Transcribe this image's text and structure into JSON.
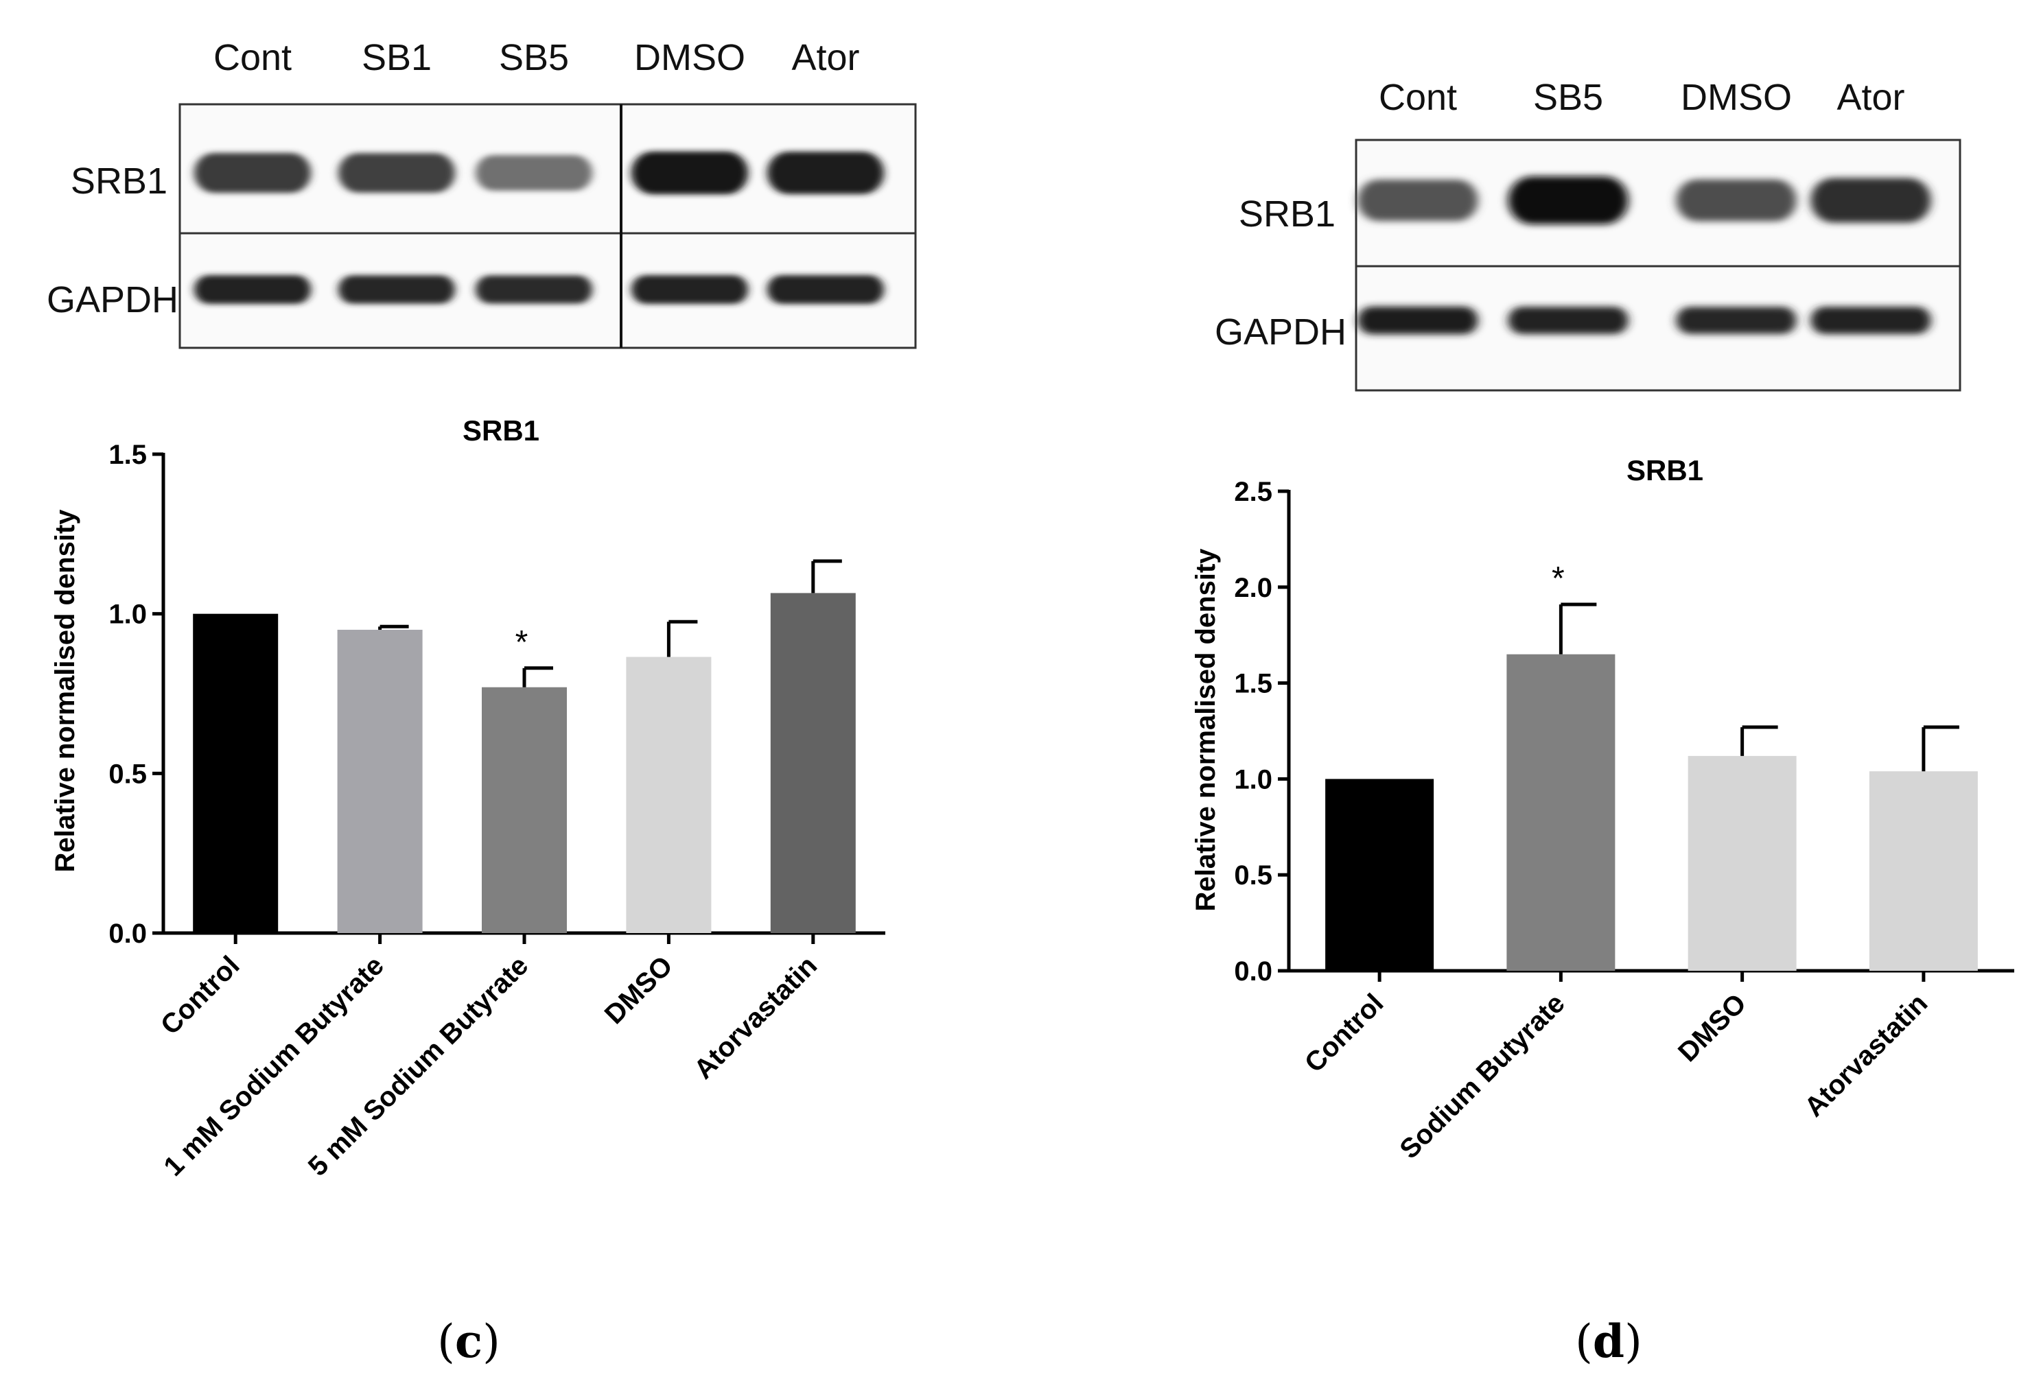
{
  "panels": [
    {
      "id": "c",
      "panel_label": {
        "open": "(",
        "letter": "c",
        "close": ")"
      },
      "blot": {
        "lanes": [
          "Cont",
          "SB1",
          "SB5",
          "DMSO",
          "Ator"
        ],
        "rows": [
          "SRB1",
          "GAPDH"
        ],
        "bands": {
          "SRB1": [
            0.8,
            0.78,
            0.58,
            0.95,
            0.93
          ],
          "GAPDH": [
            0.9,
            0.88,
            0.86,
            0.9,
            0.9
          ]
        }
      },
      "chart_data": {
        "type": "bar",
        "title": "SRB1",
        "ylabel": "Relative normalised density",
        "xlabel": "",
        "ylim": [
          0,
          1.5
        ],
        "yticks": [
          "0.0",
          "0.5",
          "1.0",
          "1.5"
        ],
        "categories": [
          "Control",
          "1 mM Sodium Butyrate",
          "5 mM Sodium Butyrate",
          "DMSO",
          "Atorvastatin"
        ],
        "values": [
          1.0,
          0.95,
          0.77,
          0.865,
          1.065
        ],
        "errors": [
          0,
          0.01,
          0.06,
          0.11,
          0.1
        ],
        "significance": [
          "",
          "",
          "*",
          "",
          ""
        ],
        "colors": [
          "#000000",
          "#a5a5aa",
          "#808080",
          "#d6d6d6",
          "#636363"
        ]
      }
    },
    {
      "id": "d",
      "panel_label": {
        "open": "(",
        "letter": "d",
        "close": ")"
      },
      "blot": {
        "lanes": [
          "Cont",
          "SB5",
          "DMSO",
          "Ator"
        ],
        "rows": [
          "SRB1",
          "GAPDH"
        ],
        "bands": {
          "SRB1": [
            0.7,
            1.0,
            0.72,
            0.85
          ],
          "GAPDH": [
            0.92,
            0.9,
            0.88,
            0.9
          ]
        }
      },
      "chart_data": {
        "type": "bar",
        "title": "SRB1",
        "ylabel": "Relative normalised density",
        "xlabel": "",
        "ylim": [
          0,
          2.5
        ],
        "yticks": [
          "0.0",
          "0.5",
          "1.0",
          "1.5",
          "2.0",
          "2.5"
        ],
        "categories": [
          "Control",
          "Sodium Butyrate",
          "DMSO",
          "Atorvastatin"
        ],
        "values": [
          1.0,
          1.65,
          1.12,
          1.04
        ],
        "errors": [
          0,
          0.26,
          0.15,
          0.23
        ],
        "significance": [
          "",
          "*",
          "",
          ""
        ],
        "colors": [
          "#000000",
          "#808080",
          "#d6d6d6",
          "#d6d6d6"
        ]
      }
    }
  ]
}
